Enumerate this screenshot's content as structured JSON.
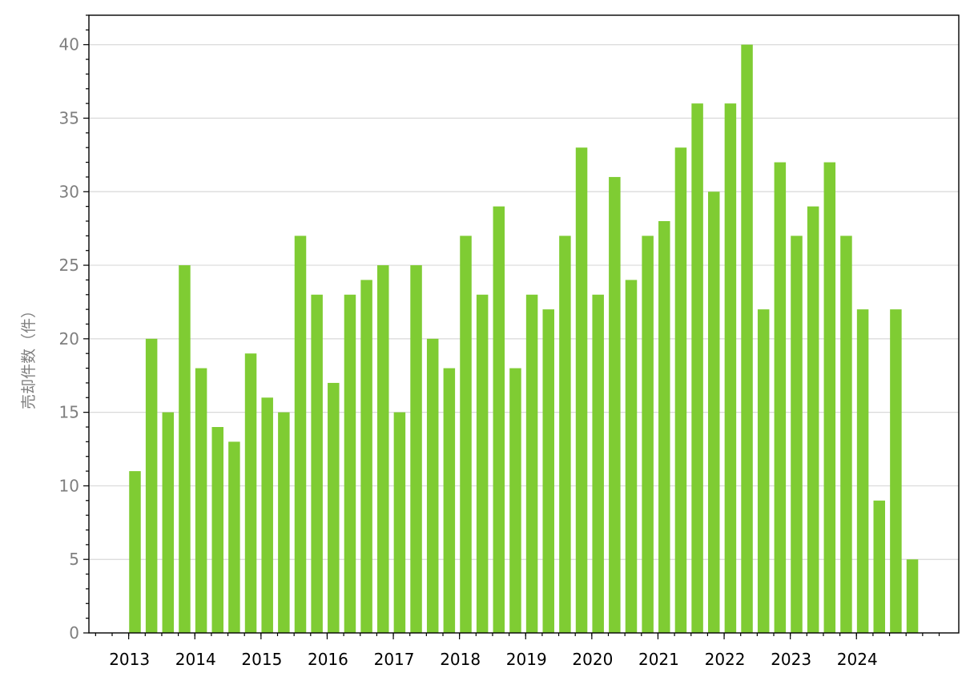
{
  "chart_data": {
    "type": "bar",
    "title": "",
    "xlabel": "",
    "ylabel": "売却件数（件）",
    "ylim": [
      0,
      42
    ],
    "yticks": [
      0,
      5,
      10,
      15,
      20,
      25,
      30,
      35,
      40
    ],
    "grid": "horizontal",
    "legend": "none",
    "color": "#7fcc33",
    "x_tick_labels": [
      "2013",
      "2014",
      "2015",
      "2016",
      "2017",
      "2018",
      "2019",
      "2020",
      "2021",
      "2022",
      "2023",
      "2024"
    ],
    "periods_per_year": 4,
    "categories": [
      "2013 Q1",
      "2013 Q2",
      "2013 Q3",
      "2013 Q4",
      "2014 Q1",
      "2014 Q2",
      "2014 Q3",
      "2014 Q4",
      "2015 Q1",
      "2015 Q2",
      "2015 Q3",
      "2015 Q4",
      "2016 Q1",
      "2016 Q2",
      "2016 Q3",
      "2016 Q4",
      "2017 Q1",
      "2017 Q2",
      "2017 Q3",
      "2017 Q4",
      "2018 Q1",
      "2018 Q2",
      "2018 Q3",
      "2018 Q4",
      "2019 Q1",
      "2019 Q2",
      "2019 Q3",
      "2019 Q4",
      "2020 Q1",
      "2020 Q2",
      "2020 Q3",
      "2020 Q4",
      "2021 Q1",
      "2021 Q2",
      "2021 Q3",
      "2021 Q4",
      "2022 Q1",
      "2022 Q2",
      "2022 Q3",
      "2022 Q4",
      "2023 Q1",
      "2023 Q2",
      "2023 Q3",
      "2023 Q4",
      "2024 Q1",
      "2024 Q2",
      "2024 Q3",
      "2024 Q4"
    ],
    "values": [
      11,
      20,
      15,
      25,
      18,
      14,
      13,
      19,
      16,
      15,
      27,
      23,
      17,
      23,
      24,
      25,
      15,
      25,
      20,
      18,
      27,
      23,
      29,
      18,
      23,
      22,
      27,
      33,
      23,
      31,
      24,
      27,
      28,
      33,
      36,
      30,
      36,
      40,
      22,
      32,
      27,
      29,
      32,
      27,
      22,
      9,
      22,
      5
    ]
  }
}
